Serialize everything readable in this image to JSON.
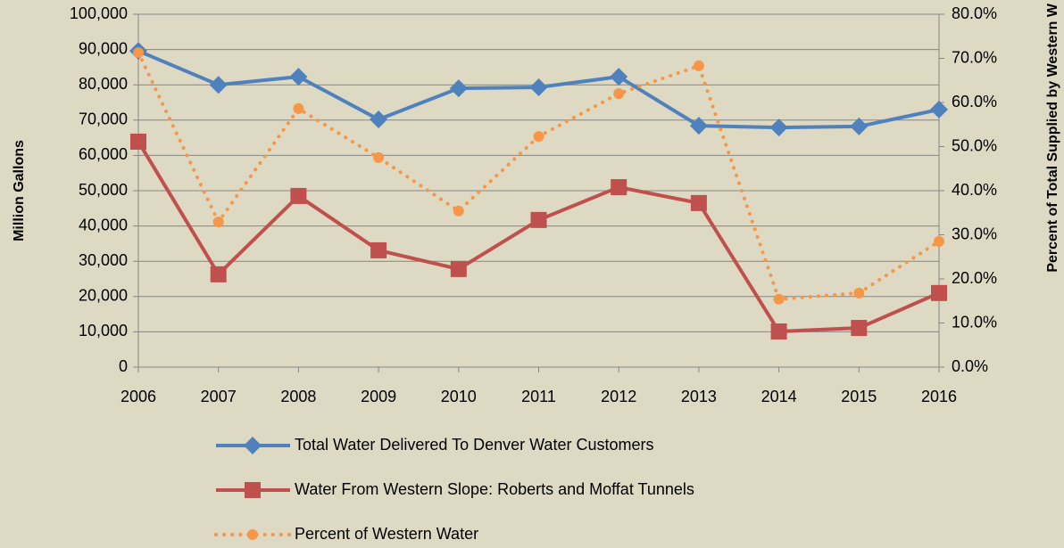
{
  "chart_data": {
    "type": "line",
    "categories": [
      "2006",
      "2007",
      "2008",
      "2009",
      "2010",
      "2011",
      "2012",
      "2013",
      "2014",
      "2015",
      "2016"
    ],
    "ylabel": "Million Gallons",
    "y2label": "Percent of Total Supplied by Western W",
    "ylim": [
      0,
      100000
    ],
    "yticks": [
      0,
      {
        "value": 10000,
        "label": "10,000"
      },
      {
        "value": 20000,
        "label": "20,000"
      },
      {
        "value": 30000,
        "label": "30,000"
      },
      {
        "value": 40000,
        "label": "40,000"
      },
      {
        "value": 50000,
        "label": "50,000"
      },
      {
        "value": 60000,
        "label": "60,000"
      },
      {
        "value": 70000,
        "label": "70,000"
      },
      {
        "value": 80000,
        "label": "80,000"
      },
      {
        "value": 90000,
        "label": "90,000"
      },
      {
        "value": 100000,
        "label": "100,000"
      }
    ],
    "y2lim": [
      0,
      80
    ],
    "y2ticks": [
      {
        "value": 0,
        "label": "0.0%"
      },
      {
        "value": 10,
        "label": "10.0%"
      },
      {
        "value": 20,
        "label": "20.0%"
      },
      {
        "value": 30,
        "label": "30.0%"
      },
      {
        "value": 40,
        "label": "40.0%"
      },
      {
        "value": 50,
        "label": "50.0%"
      },
      {
        "value": 60,
        "label": "60.0%"
      },
      {
        "value": 70,
        "label": "70.0%"
      },
      {
        "value": 80,
        "label": "80.0%"
      }
    ],
    "grid": true,
    "legend": "bottom",
    "series": [
      {
        "name": "Total Water Delivered To Denver Water Customers",
        "color": "#4f81bd",
        "marker": "diamond",
        "line": "solid",
        "values": [
          89600,
          80000,
          82300,
          70200,
          79000,
          79300,
          82300,
          68400,
          67900,
          68200,
          73000
        ]
      },
      {
        "name": "Water From Western Slope: Roberts and Moffat Tunnels",
        "color": "#c0504d",
        "marker": "square",
        "line": "solid",
        "values": [
          63900,
          26300,
          48500,
          33100,
          27800,
          41700,
          51000,
          46500,
          10100,
          11100,
          21000
        ]
      },
      {
        "name": "Percent of Western Water",
        "color": "#f79646",
        "marker": "circle",
        "line": "dotted",
        "axis": "y2",
        "values": [
          71.3,
          32.9,
          58.6,
          47.5,
          35.4,
          52.3,
          62.0,
          68.3,
          15.4,
          16.8,
          28.5
        ]
      }
    ]
  }
}
